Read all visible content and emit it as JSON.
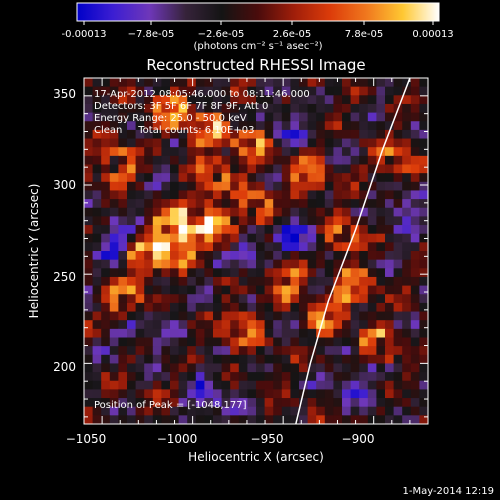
{
  "chart_data": {
    "type": "heatmap",
    "title": "Reconstructed RHESSI Image",
    "xlabel": "Heliocentric X (arcsec)",
    "ylabel": "Heliocentric Y (arcsec)",
    "xlim": [
      -1060,
      -870
    ],
    "ylim": [
      166,
      360
    ],
    "x_ticks": [
      -1050,
      -1000,
      -950,
      -900
    ],
    "x_tick_labels": [
      "−1050",
      "−1000",
      "−950",
      "−900"
    ],
    "y_ticks": [
      200,
      250,
      300,
      350
    ],
    "y_tick_labels": [
      "200",
      "250",
      "300",
      "350"
    ],
    "grid": false,
    "colorbar": {
      "tick_labels": [
        "-0.00013",
        "−7.8e-05",
        "−2.6e-05",
        "2.6e-05",
        "7.8e-05",
        "0.00013"
      ],
      "unit": "(photons cm⁻² s⁻¹ asec⁻²)",
      "range": [
        -0.00013,
        0.00013
      ],
      "colors": [
        "#0000c8",
        "#3c1ed2",
        "#6e37b9",
        "#36233a",
        "#141414",
        "#4a0c0c",
        "#a01e0a",
        "#dc3c0a",
        "#f0781e",
        "#ffc832",
        "#ffffff"
      ]
    },
    "annotations": [
      "17-Apr-2012 08:05:46.000 to 08:11:46.000",
      "Detectors: 3F 5F 6F 7F 8F 9F, Att 0",
      "Energy Range: 25.0 - 50.0 keV",
      "Clean     Total counts: 6.10E+03"
    ],
    "peak_label": "Position of Peak = [-1048,177]",
    "limb_curve": [
      [
        -943,
        166
      ],
      [
        -935,
        200
      ],
      [
        -925,
        235
      ],
      [
        -910,
        275
      ],
      [
        -895,
        320
      ],
      [
        -880,
        360
      ]
    ]
  },
  "footer": {
    "date_label": "1-May-2014 12:19"
  }
}
